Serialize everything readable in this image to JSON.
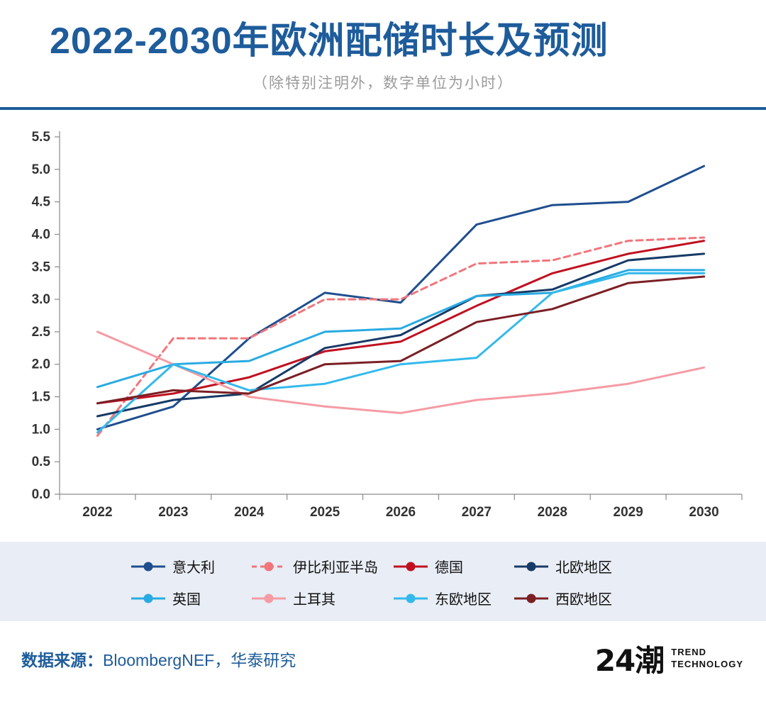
{
  "header": {
    "title": "2022-2030年欧洲配储时长及预测",
    "subtitle": "（除特别注明外，数字单位为小时）"
  },
  "chart_data": {
    "type": "line",
    "x": [
      "2022",
      "2023",
      "2024",
      "2025",
      "2026",
      "2027",
      "2028",
      "2029",
      "2030"
    ],
    "ylim": [
      0,
      5.5
    ],
    "ytick_step": 0.5,
    "grid": false,
    "legend_position": "bottom",
    "series": [
      {
        "name": "意大利",
        "color": "#1f4e8f",
        "dash": false,
        "values": [
          1.0,
          1.35,
          2.4,
          3.1,
          2.95,
          4.15,
          4.45,
          4.5,
          5.05
        ]
      },
      {
        "name": "伊比利亚半岛",
        "color": "#f0767c",
        "dash": true,
        "values": [
          0.9,
          2.4,
          2.4,
          3.0,
          3.0,
          3.55,
          3.6,
          3.9,
          3.95
        ]
      },
      {
        "name": "德国",
        "color": "#c01020",
        "dash": false,
        "values": [
          1.4,
          1.55,
          1.8,
          2.2,
          2.35,
          2.9,
          3.4,
          3.7,
          3.9
        ]
      },
      {
        "name": "北欧地区",
        "color": "#173a66",
        "dash": false,
        "values": [
          1.2,
          1.45,
          1.55,
          2.25,
          2.45,
          3.05,
          3.15,
          3.6,
          3.7
        ]
      },
      {
        "name": "英国",
        "color": "#29abe2",
        "dash": false,
        "values": [
          1.65,
          2.0,
          2.05,
          2.5,
          2.55,
          3.05,
          3.1,
          3.45,
          3.45
        ]
      },
      {
        "name": "土耳其",
        "color": "#f59ba4",
        "dash": false,
        "values": [
          2.5,
          2.0,
          1.5,
          1.35,
          1.25,
          1.45,
          1.55,
          1.7,
          1.95
        ]
      },
      {
        "name": "东欧地区",
        "color": "#33b9ec",
        "dash": false,
        "values": [
          0.95,
          2.0,
          1.6,
          1.7,
          2.0,
          2.1,
          3.1,
          3.4,
          3.4
        ]
      },
      {
        "name": "西欧地区",
        "color": "#7b1f24",
        "dash": false,
        "values": [
          1.4,
          1.6,
          1.55,
          2.0,
          2.05,
          2.65,
          2.85,
          3.25,
          3.35
        ]
      }
    ]
  },
  "footer": {
    "source_label": "数据来源：",
    "source_text": "BloombergNEF，华泰研究"
  },
  "logo": {
    "mark": "24潮",
    "line1": "TREND",
    "line2": "TECHNOLOGY"
  },
  "colors": {
    "accent_blue": "#1e5c9b",
    "legend_band_bg": "#e9edf5",
    "axis_text": "#333333"
  }
}
